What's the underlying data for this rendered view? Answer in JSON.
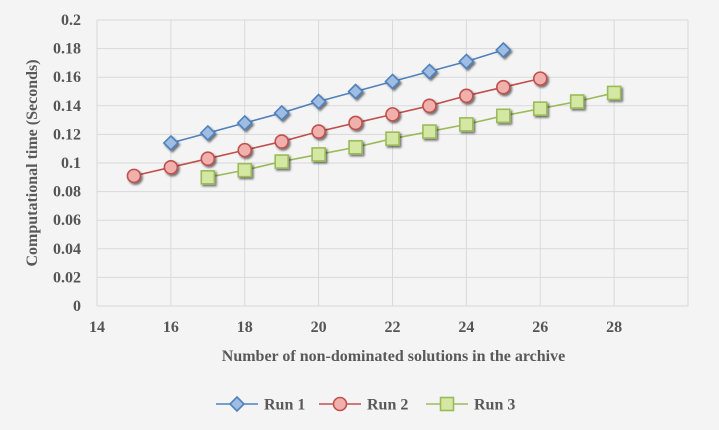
{
  "chart_data": {
    "type": "line",
    "title": "",
    "xlabel": "Number of non-dominated solutions in the archive",
    "ylabel": "Computational time (Seconds)",
    "xlim": [
      14,
      30
    ],
    "ylim": [
      0,
      0.2
    ],
    "x_ticks": [
      "14",
      "16",
      "18",
      "20",
      "22",
      "24",
      "26",
      "28"
    ],
    "y_ticks": [
      "0",
      "0.02",
      "0.04",
      "0.06",
      "0.08",
      "0.1",
      "0.12",
      "0.14",
      "0.16",
      "0.18",
      "0.2"
    ],
    "grid": true,
    "legend_position": "bottom",
    "series": [
      {
        "name": "Run 1",
        "marker": "diamond",
        "color": "#4f81bd",
        "marker_fill": "#9fbde2",
        "x": [
          16,
          17,
          18,
          19,
          20,
          21,
          22,
          23,
          24,
          25
        ],
        "y": [
          0.114,
          0.121,
          0.128,
          0.135,
          0.143,
          0.15,
          0.157,
          0.164,
          0.171,
          0.179
        ]
      },
      {
        "name": "Run 2",
        "marker": "circle",
        "color": "#c0504d",
        "marker_fill": "#f0b1ad",
        "x": [
          15,
          16,
          17,
          18,
          19,
          20,
          21,
          22,
          23,
          24,
          25,
          26
        ],
        "y": [
          0.091,
          0.097,
          0.103,
          0.109,
          0.115,
          0.122,
          0.128,
          0.134,
          0.14,
          0.147,
          0.153,
          0.159
        ]
      },
      {
        "name": "Run 3",
        "marker": "square",
        "color": "#9bbb59",
        "marker_fill": "#d4e8a4",
        "x": [
          17,
          18,
          19,
          20,
          21,
          22,
          23,
          24,
          25,
          26,
          27,
          28
        ],
        "y": [
          0.09,
          0.095,
          0.101,
          0.106,
          0.111,
          0.117,
          0.122,
          0.127,
          0.133,
          0.138,
          0.143,
          0.149
        ]
      }
    ]
  }
}
